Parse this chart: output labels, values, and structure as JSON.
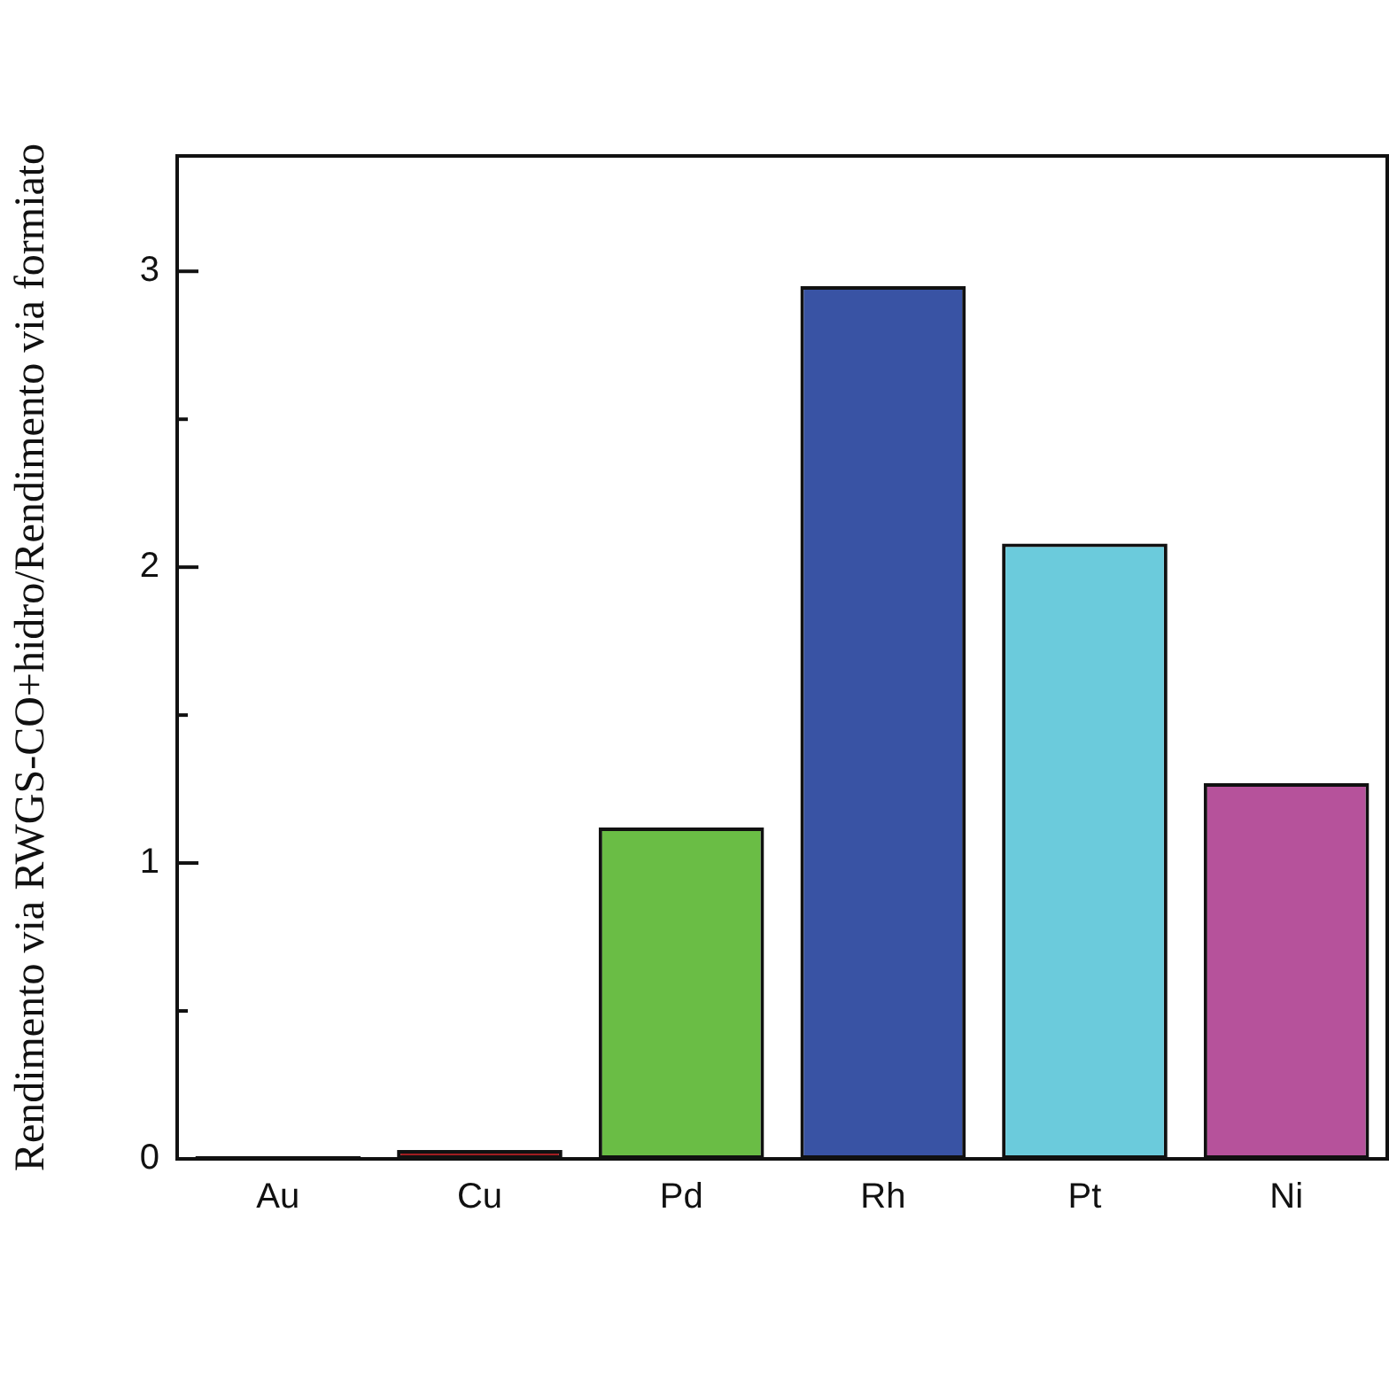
{
  "chart_data": {
    "type": "bar",
    "ylabel": "Rendimento via RWGS-CO+hidro/Rendimento via formiato",
    "categories": [
      "Au",
      "Cu",
      "Pd",
      "Rh",
      "Pt",
      "Ni"
    ],
    "values": [
      0.01,
      0.03,
      1.12,
      2.95,
      2.08,
      1.27
    ],
    "colors": [
      "#111111",
      "#a11d21",
      "#6abd45",
      "#3953a4",
      "#6bcbdc",
      "#b6529b"
    ],
    "ylim": [
      0,
      3.39
    ],
    "yticks": [
      0,
      {
        "value": 0.5,
        "label": null
      },
      1,
      {
        "value": 1.5,
        "label": null
      },
      2,
      {
        "value": 2.5,
        "label": null
      },
      3
    ],
    "grid": false,
    "legend": false
  }
}
